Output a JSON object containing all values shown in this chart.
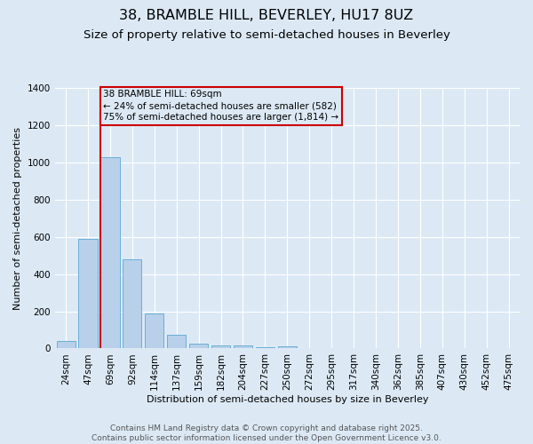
{
  "title": "38, BRAMBLE HILL, BEVERLEY, HU17 8UZ",
  "subtitle": "Size of property relative to semi-detached houses in Beverley",
  "xlabel": "Distribution of semi-detached houses by size in Beverley",
  "ylabel": "Number of semi-detached properties",
  "categories": [
    "24sqm",
    "47sqm",
    "69sqm",
    "92sqm",
    "114sqm",
    "137sqm",
    "159sqm",
    "182sqm",
    "204sqm",
    "227sqm",
    "250sqm",
    "272sqm",
    "295sqm",
    "317sqm",
    "340sqm",
    "362sqm",
    "385sqm",
    "407sqm",
    "430sqm",
    "452sqm",
    "475sqm"
  ],
  "values": [
    40,
    590,
    1030,
    480,
    190,
    75,
    25,
    18,
    17,
    5,
    12,
    0,
    0,
    0,
    0,
    0,
    0,
    0,
    0,
    0,
    0
  ],
  "bar_color": "#b8d0ea",
  "bar_edge_color": "#6baed6",
  "marker_index": 2,
  "marker_line_color": "#cc0000",
  "annotation_line1": "38 BRAMBLE HILL: 69sqm",
  "annotation_line2": "← 24% of semi-detached houses are smaller (582)",
  "annotation_line3": "75% of semi-detached houses are larger (1,814) →",
  "annotation_box_color": "#cc0000",
  "ylim": [
    0,
    1400
  ],
  "yticks": [
    0,
    200,
    400,
    600,
    800,
    1000,
    1200,
    1400
  ],
  "background_color": "#dce9f5",
  "grid_color": "#ffffff",
  "footer_line1": "Contains HM Land Registry data © Crown copyright and database right 2025.",
  "footer_line2": "Contains public sector information licensed under the Open Government Licence v3.0.",
  "title_fontsize": 11.5,
  "subtitle_fontsize": 9.5,
  "axis_label_fontsize": 8,
  "tick_fontsize": 7.5,
  "footer_fontsize": 6.5
}
